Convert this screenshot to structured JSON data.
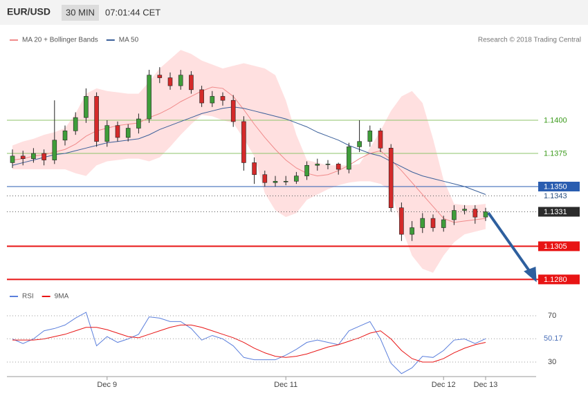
{
  "header": {
    "symbol": "EUR/USD",
    "interval": "30 MIN",
    "time": "07:01:44 CET"
  },
  "credit": "Research © 2018 Trading Central",
  "chart_data": [
    {
      "type": "candlestick",
      "open": [
        1.1368,
        1.1373,
        1.1371,
        1.1375,
        1.137,
        1.1385,
        1.1392,
        1.1402,
        1.1418,
        1.1384,
        1.1396,
        1.1387,
        1.1394,
        1.1401,
        1.1434,
        1.1432,
        1.1426,
        1.1434,
        1.1423,
        1.1413,
        1.1418,
        1.1415,
        1.1399,
        1.1368,
        1.1359,
        1.1353,
        1.1354,
        1.1354,
        1.1358,
        1.1366,
        1.1367,
        1.1367,
        1.1363,
        1.138,
        1.1384,
        1.1392,
        1.1379,
        1.1334,
        1.1314,
        1.1319,
        1.1326,
        1.1319,
        1.1325,
        1.1332,
        1.1333,
        1.1327
      ],
      "high": [
        1.1378,
        1.1377,
        1.1379,
        1.1378,
        1.1415,
        1.1396,
        1.1406,
        1.1424,
        1.1421,
        1.14,
        1.1399,
        1.1397,
        1.1405,
        1.1438,
        1.144,
        1.1436,
        1.1438,
        1.1437,
        1.1426,
        1.1422,
        1.1421,
        1.1419,
        1.1403,
        1.1372,
        1.1362,
        1.1358,
        1.1358,
        1.1361,
        1.1369,
        1.1371,
        1.137,
        1.1368,
        1.1383,
        1.14,
        1.1396,
        1.1394,
        1.1382,
        1.1338,
        1.1324,
        1.133,
        1.1329,
        1.1328,
        1.1336,
        1.1336,
        1.1336,
        1.1334
      ],
      "low": [
        1.1364,
        1.1366,
        1.1368,
        1.1366,
        1.1367,
        1.1381,
        1.1389,
        1.1398,
        1.138,
        1.138,
        1.1384,
        1.1384,
        1.139,
        1.1398,
        1.1428,
        1.1423,
        1.1423,
        1.142,
        1.141,
        1.141,
        1.1411,
        1.1395,
        1.1362,
        1.1352,
        1.135,
        1.135,
        1.1351,
        1.1352,
        1.1355,
        1.1362,
        1.1363,
        1.1359,
        1.136,
        1.1376,
        1.138,
        1.1376,
        1.1331,
        1.1309,
        1.1309,
        1.1315,
        1.1316,
        1.1316,
        1.1321,
        1.1329,
        1.1322,
        1.1324
      ],
      "close": [
        1.1373,
        1.1371,
        1.1375,
        1.137,
        1.1385,
        1.1392,
        1.1402,
        1.1418,
        1.1384,
        1.1396,
        1.1387,
        1.1394,
        1.1401,
        1.1434,
        1.1432,
        1.1426,
        1.1434,
        1.1423,
        1.1413,
        1.1418,
        1.1415,
        1.1399,
        1.1368,
        1.1359,
        1.1353,
        1.1354,
        1.1354,
        1.1358,
        1.1366,
        1.1367,
        1.1367,
        1.1363,
        1.138,
        1.1384,
        1.1392,
        1.1379,
        1.1334,
        1.1314,
        1.1319,
        1.1326,
        1.1319,
        1.1325,
        1.1332,
        1.1333,
        1.1327,
        1.1331
      ],
      "up_color": "#3f9d3a",
      "down_color": "#d42a2a",
      "series": [
        {
          "name": "MA 20 + Bollinger Bands",
          "color": "#f08a8a",
          "band_color": "#ffe0e0",
          "values": [
            1.137,
            1.1371,
            1.1373,
            1.1374,
            1.1376,
            1.1378,
            1.1382,
            1.1388,
            1.1392,
            1.1394,
            1.1396,
            1.1397,
            1.1398,
            1.1402,
            1.1405,
            1.1409,
            1.1414,
            1.1418,
            1.1422,
            1.1425,
            1.1424,
            1.1418,
            1.1408,
            1.1397,
            1.1387,
            1.1378,
            1.137,
            1.1364,
            1.136,
            1.1358,
            1.1359,
            1.1362,
            1.1366,
            1.1371,
            1.1375,
            1.1377,
            1.137,
            1.1362,
            1.1353,
            1.1344,
            1.1335,
            1.1326,
            1.1323,
            1.1324,
            1.1325,
            1.1326
          ],
          "upper": [
            1.1381,
            1.1384,
            1.1386,
            1.1389,
            1.1391,
            1.1394,
            1.1405,
            1.142,
            1.1424,
            1.1422,
            1.1421,
            1.142,
            1.142,
            1.1429,
            1.1439,
            1.1446,
            1.1453,
            1.145,
            1.1445,
            1.1442,
            1.1439,
            1.1441,
            1.1443,
            1.1441,
            1.1439,
            1.1434,
            1.1415,
            1.1389,
            1.137,
            1.1368,
            1.1366,
            1.1366,
            1.1366,
            1.1367,
            1.1379,
            1.1392,
            1.1407,
            1.1418,
            1.1422,
            1.1413,
            1.1386,
            1.1355,
            1.1337,
            1.1336,
            1.1336,
            1.1337
          ],
          "lower": [
            1.1363,
            1.1363,
            1.1363,
            1.1363,
            1.1363,
            1.1363,
            1.136,
            1.1358,
            1.1366,
            1.1369,
            1.137,
            1.1371,
            1.1371,
            1.1369,
            1.1372,
            1.138,
            1.1389,
            1.1397,
            1.1404,
            1.1403,
            1.14,
            1.1398,
            1.1386,
            1.1373,
            1.1345,
            1.1332,
            1.1327,
            1.133,
            1.134,
            1.1344,
            1.1348,
            1.1351,
            1.1353,
            1.1354,
            1.1354,
            1.1352,
            1.1347,
            1.1319,
            1.1298,
            1.1288,
            1.1285,
            1.1298,
            1.1308,
            1.1314,
            1.1316,
            1.1318
          ]
        },
        {
          "name": "MA 50",
          "color": "#3a5f9a",
          "values": [
            1.1366,
            1.1368,
            1.137,
            1.1372,
            1.1374,
            1.1375,
            1.1377,
            1.1379,
            1.1381,
            1.1383,
            1.1384,
            1.1385,
            1.1386,
            1.1389,
            1.1393,
            1.1396,
            1.1399,
            1.1402,
            1.1405,
            1.1407,
            1.1409,
            1.141,
            1.1409,
            1.1407,
            1.1405,
            1.1403,
            1.1401,
            1.1398,
            1.1395,
            1.1391,
            1.1388,
            1.1385,
            1.1381,
            1.1378,
            1.1375,
            1.1373,
            1.1369,
            1.1365,
            1.1361,
            1.1358,
            1.1356,
            1.1354,
            1.1352,
            1.135,
            1.1347,
            1.1344
          ]
        }
      ],
      "ylim": [
        1.1275,
        1.147
      ],
      "levels": [
        {
          "value": 1.14,
          "label": "1.1400",
          "color": "#8cc36a",
          "text_color": "#3a9a1a",
          "style": "solid",
          "label_style": "text"
        },
        {
          "value": 1.1375,
          "label": "1.1375",
          "color": "#8cc36a",
          "text_color": "#3a9a1a",
          "style": "solid",
          "label_style": "text"
        },
        {
          "value": 1.135,
          "label": "1.1350",
          "color": "#2a5db0",
          "text_color": "#ffffff",
          "style": "solid",
          "label_style": "badge"
        },
        {
          "value": 1.1343,
          "color": "#555555",
          "text_color": "#2a4f80",
          "style": "dotted",
          "label_style": "text"
        },
        {
          "value": 1.1331,
          "color": "#555555",
          "text_color": "#ffffff",
          "badge_color": "#2b2b2b",
          "style": "dotted",
          "label_style": "badge"
        },
        {
          "value": 1.1305,
          "label": "1.1305",
          "color": "#e81414",
          "text_color": "#ffffff",
          "style": "solid",
          "label_style": "badge"
        },
        {
          "value": 1.128,
          "label": "1.1280",
          "color": "#e81414",
          "text_color": "#ffffff",
          "style": "solid",
          "label_style": "badge"
        }
      ]
    },
    {
      "type": "line",
      "categories": [
        null,
        null,
        null,
        null,
        null,
        null,
        null,
        null,
        null,
        "Dec 9",
        null,
        null,
        null,
        null,
        null,
        null,
        null,
        null,
        null,
        null,
        null,
        null,
        null,
        null,
        null,
        null,
        "Dec 11",
        null,
        null,
        null,
        null,
        null,
        null,
        null,
        null,
        null,
        null,
        null,
        null,
        null,
        null,
        "Dec 12",
        null,
        null,
        null,
        "Dec 13"
      ],
      "series": [
        {
          "name": "RSI",
          "color": "#5b7fdc",
          "values": [
            50,
            46,
            50,
            57,
            59,
            62,
            68,
            73,
            44,
            52,
            47,
            50,
            54,
            69,
            68,
            65,
            65,
            59,
            49,
            53,
            50,
            44,
            34,
            32,
            32,
            32,
            36,
            41,
            47,
            49,
            47,
            45,
            57,
            61,
            65,
            50,
            29,
            20,
            25,
            35,
            34,
            40,
            49,
            50,
            46,
            50.17
          ]
        },
        {
          "name": "9MA",
          "color": "#e81414",
          "values": [
            49,
            49,
            49,
            50,
            52,
            54,
            57,
            60,
            60,
            58,
            55,
            52,
            51,
            54,
            57,
            60,
            62,
            62,
            60,
            57,
            54,
            51,
            47,
            42,
            38,
            35,
            34,
            35,
            37,
            40,
            43,
            45,
            48,
            51,
            55,
            57,
            50,
            40,
            33,
            30,
            30,
            33,
            38,
            42,
            45,
            47
          ]
        }
      ],
      "ylim": [
        20,
        80
      ],
      "yticks": [
        70,
        30
      ]
    }
  ]
}
